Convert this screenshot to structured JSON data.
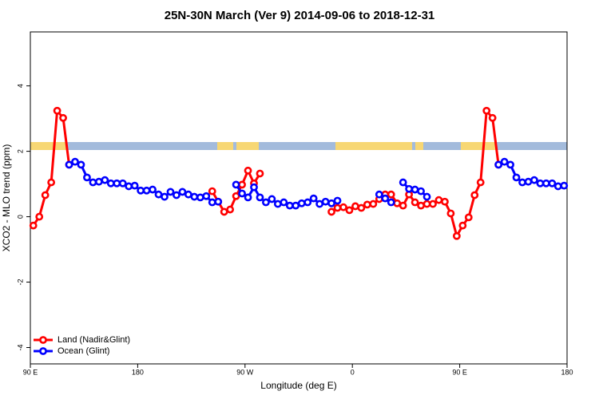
{
  "chart_data": {
    "type": "line",
    "title": "25N-30N March (Ver 9)   2014-09-06 to 2018-12-31",
    "x_label": "Longitude (deg E)",
    "y_label": "XCO2 - MLO trend (ppm)",
    "xlim": [
      90,
      540
    ],
    "xticks": [
      {
        "value": 90,
        "label": "90 E"
      },
      180,
      {
        "value": 270,
        "label": "90 W"
      },
      {
        "value": 360,
        "label": "0"
      },
      {
        "value": 450,
        "label": "90 E"
      },
      {
        "value": 540,
        "label": "180"
      }
    ],
    "ylim": [
      -4.5,
      5.65
    ],
    "yticks": [
      -4,
      -2,
      0,
      2,
      4
    ],
    "grid": false,
    "legend": "bottom-left",
    "series": [
      {
        "name": "Land (Nadir&Glint)",
        "color": "#ff0000",
        "x": [
          92.5,
          97.5,
          102.5,
          107.5,
          112.5,
          117.5,
          122.5,
          127.5,
          242.5,
          247.5,
          252.5,
          257.5,
          262.5,
          267.5,
          272.5,
          277.5,
          282.5,
          287.5,
          342.5,
          347.5,
          352.5,
          357.5,
          362.5,
          367.5,
          372.5,
          377.5,
          382.5,
          387.5,
          392.5,
          397.5,
          402.5,
          407.5,
          412.5,
          417.5,
          422.5,
          427.5,
          432.5,
          437.5,
          442.5,
          447.5,
          452.5,
          457.5,
          462.5,
          467.5,
          472.5,
          477.5,
          482.5
        ],
        "values": [
          -0.27,
          0,
          0.66,
          1.05,
          3.24,
          3.02,
          1.59,
          null,
          0.78,
          0.46,
          0.15,
          0.22,
          0.63,
          0.98,
          1.41,
          1.02,
          1.32,
          null,
          0.15,
          0.27,
          0.29,
          0.2,
          0.32,
          0.27,
          0.37,
          0.39,
          0.54,
          0.68,
          0.68,
          0.41,
          0.34,
          0.68,
          0.44,
          0.34,
          0.39,
          0.39,
          0.51,
          0.46,
          0.1,
          -0.59,
          -0.27,
          -0.02,
          0.66,
          1.05,
          3.24,
          3.02,
          1.59
        ]
      },
      {
        "name": "Ocean (Glint)",
        "color": "#0000ff",
        "x": [
          122.5,
          127.5,
          132.5,
          137.5,
          142.5,
          147.5,
          152.5,
          157.5,
          162.5,
          167.5,
          172.5,
          177.5,
          182.5,
          187.5,
          192.5,
          197.5,
          202.5,
          207.5,
          212.5,
          217.5,
          222.5,
          227.5,
          232.5,
          237.5,
          242.5,
          247.5,
          252.5,
          262.5,
          267.5,
          272.5,
          277.5,
          282.5,
          287.5,
          292.5,
          297.5,
          302.5,
          307.5,
          312.5,
          317.5,
          322.5,
          327.5,
          332.5,
          337.5,
          342.5,
          347.5,
          352.5,
          382.5,
          387.5,
          392.5,
          397.5,
          402.5,
          407.5,
          412.5,
          417.5,
          422.5,
          427.5,
          482.5,
          487.5,
          492.5,
          497.5,
          502.5,
          507.5,
          512.5,
          517.5,
          522.5,
          527.5,
          532.5,
          537.5
        ],
        "values": [
          1.59,
          1.68,
          1.59,
          1.2,
          1.05,
          1.07,
          1.12,
          1.02,
          1.02,
          1.02,
          0.93,
          0.95,
          0.8,
          0.8,
          0.83,
          0.68,
          0.61,
          0.76,
          0.66,
          0.76,
          0.68,
          0.61,
          0.59,
          0.63,
          0.44,
          0.46,
          null,
          0.98,
          0.71,
          0.59,
          0.9,
          0.59,
          0.44,
          0.54,
          0.39,
          0.44,
          0.34,
          0.34,
          0.41,
          0.44,
          0.56,
          0.39,
          0.46,
          0.41,
          0.49,
          null,
          0.68,
          0.56,
          0.44,
          null,
          1.05,
          0.85,
          0.83,
          0.78,
          0.61,
          null,
          1.59,
          1.68,
          1.59,
          1.2,
          1.05,
          1.07,
          1.12,
          1.02,
          1.02,
          1.02,
          0.93,
          0.95
        ]
      }
    ]
  }
}
